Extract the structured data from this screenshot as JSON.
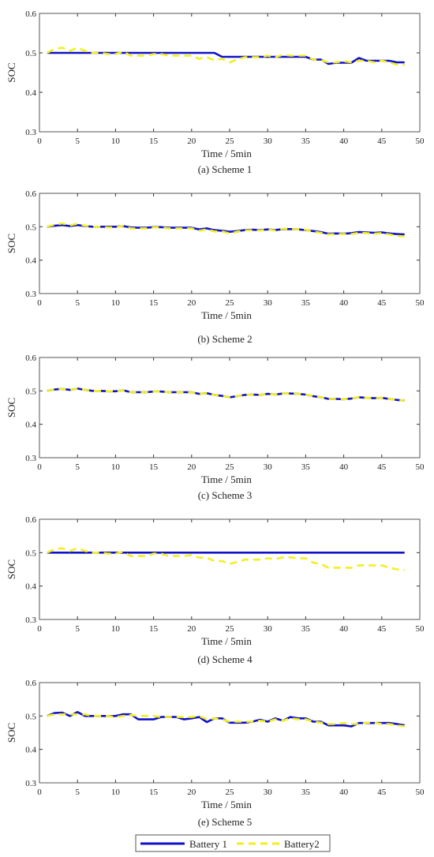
{
  "colors": {
    "battery1": "#1010c8",
    "battery2": "#f2ef1f"
  },
  "legend": {
    "placement": "bottom-center",
    "items": [
      "Battery 1",
      "Battery2"
    ]
  },
  "chart_data": [
    {
      "type": "line",
      "caption": "(a) Scheme 1",
      "xlabel": "Time / 5min",
      "ylabel": "SOC",
      "xlim": [
        0,
        50
      ],
      "ylim": [
        0.3,
        0.6
      ],
      "xticks": [
        "0",
        "5",
        "10",
        "15",
        "20",
        "25",
        "30",
        "35",
        "40",
        "45",
        "50"
      ],
      "yticks": [
        "0.3",
        "0.4",
        "0.5",
        "0.6"
      ],
      "x": [
        1,
        2,
        3,
        4,
        5,
        6,
        7,
        8,
        9,
        10,
        11,
        12,
        13,
        14,
        15,
        16,
        17,
        18,
        19,
        20,
        21,
        22,
        23,
        24,
        25,
        26,
        27,
        28,
        29,
        30,
        31,
        32,
        33,
        34,
        35,
        36,
        37,
        38,
        39,
        40,
        41,
        42,
        43,
        44,
        45,
        46,
        47,
        48
      ],
      "series": [
        {
          "name": "Battery 1",
          "values": [
            0.5,
            0.5,
            0.5,
            0.5,
            0.5,
            0.5,
            0.5,
            0.5,
            0.5,
            0.5,
            0.5,
            0.5,
            0.5,
            0.5,
            0.5,
            0.5,
            0.5,
            0.5,
            0.5,
            0.5,
            0.5,
            0.5,
            0.5,
            0.49,
            0.49,
            0.49,
            0.49,
            0.49,
            0.49,
            0.49,
            0.49,
            0.49,
            0.49,
            0.49,
            0.49,
            0.483,
            0.483,
            0.472,
            0.475,
            0.475,
            0.475,
            0.487,
            0.48,
            0.48,
            0.48,
            0.48,
            0.476,
            0.476
          ]
        },
        {
          "name": "Battery2",
          "values": [
            0.5,
            0.51,
            0.513,
            0.505,
            0.513,
            0.505,
            0.5,
            0.5,
            0.497,
            0.497,
            0.503,
            0.493,
            0.493,
            0.493,
            0.497,
            0.497,
            0.493,
            0.493,
            0.493,
            0.493,
            0.485,
            0.489,
            0.481,
            0.485,
            0.476,
            0.483,
            0.489,
            0.489,
            0.489,
            0.493,
            0.489,
            0.495,
            0.493,
            0.493,
            0.493,
            0.483,
            0.481,
            0.476,
            0.476,
            0.479,
            0.476,
            0.48,
            0.48,
            0.476,
            0.48,
            0.476,
            0.47,
            0.47
          ]
        }
      ]
    },
    {
      "type": "line",
      "caption": "(b) Scheme 2",
      "xlabel": "Time / 5min",
      "ylabel": "SOC",
      "xlim": [
        0,
        50
      ],
      "ylim": [
        0.3,
        0.6
      ],
      "xticks": [
        "0",
        "5",
        "10",
        "15",
        "20",
        "25",
        "30",
        "35",
        "40",
        "45",
        "50"
      ],
      "yticks": [
        "0.3",
        "0.4",
        "0.5",
        "0.6"
      ],
      "x": [
        1,
        2,
        3,
        4,
        5,
        6,
        7,
        8,
        9,
        10,
        11,
        12,
        13,
        14,
        15,
        16,
        17,
        18,
        19,
        20,
        21,
        22,
        23,
        24,
        25,
        26,
        27,
        28,
        29,
        30,
        31,
        32,
        33,
        34,
        35,
        36,
        37,
        38,
        39,
        40,
        41,
        42,
        43,
        44,
        45,
        46,
        47,
        48
      ],
      "series": [
        {
          "name": "Battery 1",
          "values": [
            0.5,
            0.503,
            0.505,
            0.502,
            0.505,
            0.502,
            0.5,
            0.5,
            0.5,
            0.5,
            0.502,
            0.498,
            0.497,
            0.497,
            0.499,
            0.499,
            0.497,
            0.497,
            0.497,
            0.497,
            0.492,
            0.495,
            0.49,
            0.488,
            0.485,
            0.487,
            0.49,
            0.491,
            0.49,
            0.492,
            0.49,
            0.493,
            0.493,
            0.492,
            0.49,
            0.487,
            0.484,
            0.479,
            0.48,
            0.479,
            0.481,
            0.484,
            0.483,
            0.482,
            0.483,
            0.48,
            0.478,
            0.477
          ]
        },
        {
          "name": "Battery2",
          "values": [
            0.5,
            0.506,
            0.51,
            0.504,
            0.509,
            0.503,
            0.5,
            0.5,
            0.498,
            0.498,
            0.503,
            0.495,
            0.495,
            0.495,
            0.498,
            0.498,
            0.495,
            0.495,
            0.495,
            0.495,
            0.488,
            0.492,
            0.486,
            0.486,
            0.48,
            0.485,
            0.489,
            0.49,
            0.489,
            0.492,
            0.489,
            0.494,
            0.493,
            0.492,
            0.491,
            0.485,
            0.482,
            0.477,
            0.478,
            0.478,
            0.478,
            0.482,
            0.481,
            0.479,
            0.481,
            0.477,
            0.473,
            0.471
          ]
        }
      ]
    },
    {
      "type": "line",
      "caption": "(c) Scheme 3",
      "xlabel": "Time / 5min",
      "ylabel": "SOC",
      "xlim": [
        0,
        50
      ],
      "ylim": [
        0.3,
        0.6
      ],
      "xticks": [
        "0",
        "5",
        "10",
        "15",
        "20",
        "25",
        "30",
        "35",
        "40",
        "45",
        "50"
      ],
      "yticks": [
        "0.3",
        "0.4",
        "0.5",
        "0.6"
      ],
      "x": [
        1,
        2,
        3,
        4,
        5,
        6,
        7,
        8,
        9,
        10,
        11,
        12,
        13,
        14,
        15,
        16,
        17,
        18,
        19,
        20,
        21,
        22,
        23,
        24,
        25,
        26,
        27,
        28,
        29,
        30,
        31,
        32,
        33,
        34,
        35,
        36,
        37,
        38,
        39,
        40,
        41,
        42,
        43,
        44,
        45,
        46,
        47,
        48
      ],
      "series": [
        {
          "name": "Battery 1",
          "values": [
            0.5,
            0.504,
            0.506,
            0.503,
            0.507,
            0.503,
            0.5,
            0.5,
            0.499,
            0.499,
            0.502,
            0.496,
            0.496,
            0.496,
            0.498,
            0.498,
            0.496,
            0.496,
            0.496,
            0.496,
            0.491,
            0.493,
            0.488,
            0.485,
            0.481,
            0.484,
            0.488,
            0.489,
            0.488,
            0.491,
            0.489,
            0.492,
            0.492,
            0.491,
            0.489,
            0.484,
            0.481,
            0.476,
            0.476,
            0.475,
            0.477,
            0.481,
            0.479,
            0.478,
            0.479,
            0.476,
            0.473,
            0.471
          ]
        },
        {
          "name": "Battery2",
          "values": [
            0.5,
            0.504,
            0.506,
            0.503,
            0.507,
            0.503,
            0.5,
            0.5,
            0.499,
            0.499,
            0.502,
            0.496,
            0.496,
            0.496,
            0.498,
            0.498,
            0.496,
            0.496,
            0.496,
            0.496,
            0.491,
            0.493,
            0.488,
            0.485,
            0.481,
            0.484,
            0.488,
            0.489,
            0.488,
            0.491,
            0.489,
            0.492,
            0.492,
            0.491,
            0.489,
            0.484,
            0.481,
            0.476,
            0.476,
            0.475,
            0.477,
            0.481,
            0.479,
            0.478,
            0.479,
            0.476,
            0.473,
            0.471
          ]
        }
      ]
    },
    {
      "type": "line",
      "caption": "(d) Scheme 4",
      "xlabel": "Time / 5min",
      "ylabel": "SOC",
      "xlim": [
        0,
        50
      ],
      "ylim": [
        0.3,
        0.6
      ],
      "xticks": [
        "0",
        "5",
        "10",
        "15",
        "20",
        "25",
        "30",
        "35",
        "40",
        "45",
        "50"
      ],
      "yticks": [
        "0.3",
        "0.4",
        "0.5",
        "0.6"
      ],
      "x": [
        1,
        2,
        3,
        4,
        5,
        6,
        7,
        8,
        9,
        10,
        11,
        12,
        13,
        14,
        15,
        16,
        17,
        18,
        19,
        20,
        21,
        22,
        23,
        24,
        25,
        26,
        27,
        28,
        29,
        30,
        31,
        32,
        33,
        34,
        35,
        36,
        37,
        38,
        39,
        40,
        41,
        42,
        43,
        44,
        45,
        46,
        47,
        48
      ],
      "series": [
        {
          "name": "Battery 1",
          "values": [
            0.5,
            0.5,
            0.5,
            0.5,
            0.5,
            0.5,
            0.5,
            0.5,
            0.5,
            0.5,
            0.5,
            0.5,
            0.5,
            0.5,
            0.5,
            0.5,
            0.5,
            0.5,
            0.5,
            0.5,
            0.5,
            0.5,
            0.5,
            0.5,
            0.5,
            0.5,
            0.5,
            0.5,
            0.5,
            0.5,
            0.5,
            0.5,
            0.5,
            0.5,
            0.5,
            0.5,
            0.5,
            0.5,
            0.5,
            0.5,
            0.5,
            0.5,
            0.5,
            0.5,
            0.5,
            0.5,
            0.5,
            0.5
          ]
        },
        {
          "name": "Battery2",
          "values": [
            0.5,
            0.51,
            0.513,
            0.505,
            0.513,
            0.505,
            0.5,
            0.5,
            0.497,
            0.497,
            0.503,
            0.49,
            0.49,
            0.49,
            0.497,
            0.497,
            0.49,
            0.49,
            0.49,
            0.493,
            0.485,
            0.485,
            0.475,
            0.475,
            0.466,
            0.472,
            0.479,
            0.479,
            0.479,
            0.483,
            0.481,
            0.486,
            0.486,
            0.483,
            0.483,
            0.47,
            0.466,
            0.455,
            0.455,
            0.455,
            0.455,
            0.462,
            0.462,
            0.462,
            0.462,
            0.455,
            0.45,
            0.448
          ]
        }
      ]
    },
    {
      "type": "line",
      "caption": "(e) Scheme 5",
      "xlabel": "Time / 5min",
      "ylabel": "SOC",
      "xlim": [
        0,
        50
      ],
      "ylim": [
        0.3,
        0.6
      ],
      "xticks": [
        "0",
        "5",
        "10",
        "15",
        "20",
        "25",
        "30",
        "35",
        "40",
        "45",
        "50"
      ],
      "yticks": [
        "0.3",
        "0.4",
        "0.5",
        "0.6"
      ],
      "x": [
        1,
        2,
        3,
        4,
        5,
        6,
        7,
        8,
        9,
        10,
        11,
        12,
        13,
        14,
        15,
        16,
        17,
        18,
        19,
        20,
        21,
        22,
        23,
        24,
        25,
        26,
        27,
        28,
        29,
        30,
        31,
        32,
        33,
        34,
        35,
        36,
        37,
        38,
        39,
        40,
        41,
        42,
        43,
        44,
        45,
        46,
        47,
        48
      ],
      "series": [
        {
          "name": "Battery 1",
          "values": [
            0.5,
            0.509,
            0.51,
            0.5,
            0.512,
            0.5,
            0.5,
            0.5,
            0.5,
            0.5,
            0.505,
            0.505,
            0.49,
            0.49,
            0.49,
            0.497,
            0.497,
            0.497,
            0.49,
            0.493,
            0.497,
            0.482,
            0.493,
            0.493,
            0.48,
            0.48,
            0.48,
            0.483,
            0.489,
            0.483,
            0.493,
            0.486,
            0.497,
            0.493,
            0.493,
            0.483,
            0.483,
            0.472,
            0.472,
            0.472,
            0.469,
            0.479,
            0.479,
            0.479,
            0.479,
            0.479,
            0.476,
            0.472
          ]
        },
        {
          "name": "Battery2",
          "values": [
            0.5,
            0.505,
            0.505,
            0.505,
            0.505,
            0.505,
            0.5,
            0.5,
            0.5,
            0.497,
            0.5,
            0.503,
            0.5,
            0.5,
            0.5,
            0.497,
            0.497,
            0.497,
            0.497,
            0.497,
            0.5,
            0.49,
            0.493,
            0.49,
            0.483,
            0.483,
            0.483,
            0.483,
            0.486,
            0.483,
            0.49,
            0.486,
            0.493,
            0.49,
            0.49,
            0.483,
            0.48,
            0.476,
            0.476,
            0.479,
            0.476,
            0.476,
            0.48,
            0.48,
            0.476,
            0.476,
            0.472,
            0.469
          ]
        }
      ]
    }
  ]
}
